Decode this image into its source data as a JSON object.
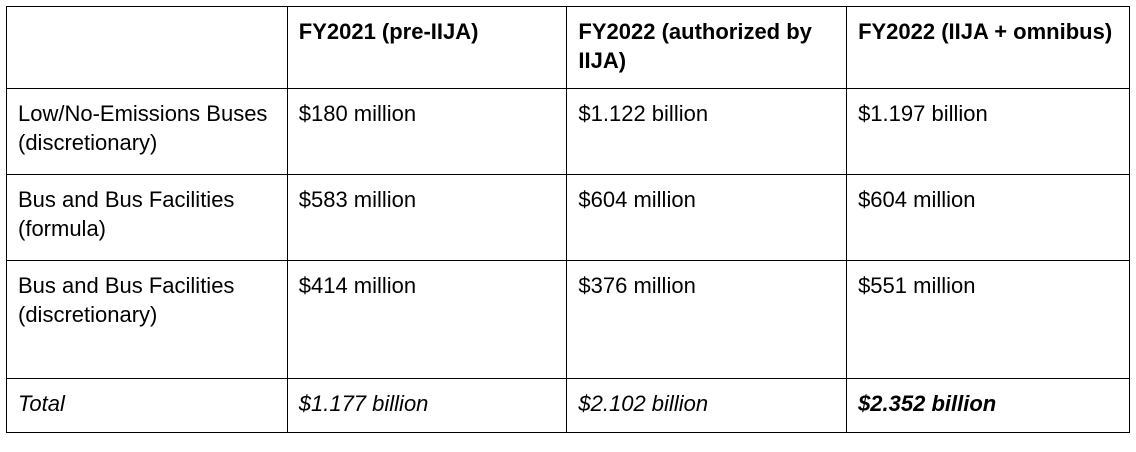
{
  "table": {
    "headers": [
      "",
      "FY2021 (pre-IIJA)",
      "FY2022 (authorized by IIJA)",
      "FY2022 (IIJA + omnibus)"
    ],
    "rows": [
      {
        "label": "Low/No-Emissions Buses (discretionary)",
        "values": [
          "$180 million",
          "$1.122 billion",
          "$1.197 billion"
        ]
      },
      {
        "label": "Bus and Bus Facilities (formula)",
        "values": [
          "$583 million",
          "$604 million",
          "$604 million"
        ]
      },
      {
        "label": "Bus and Bus Facilities (discretionary)",
        "values": [
          "$414 million",
          "$376 million",
          "$551 million"
        ]
      }
    ],
    "total": {
      "label": "Total",
      "values": [
        "$1.177 billion",
        "$2.102 billion",
        "$2.352 billion"
      ]
    }
  }
}
